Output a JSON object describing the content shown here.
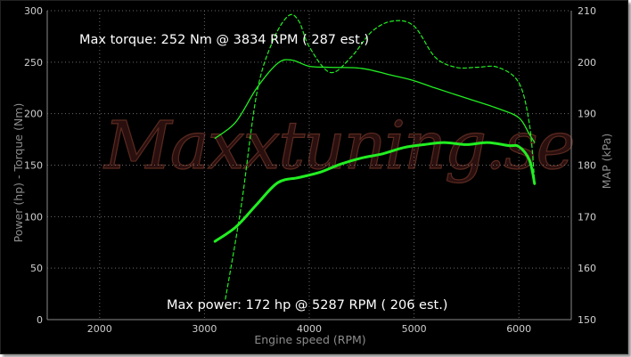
{
  "chart_data": {
    "type": "line",
    "xlabel": "Engine speed (RPM)",
    "ylabel_left": "Power (hp)  - Torque (Nm)",
    "ylabel_right": "MAP (kPa)",
    "xlim": [
      1500,
      6500
    ],
    "ylim_left": [
      0,
      300
    ],
    "ylim_right": [
      150,
      210
    ],
    "x_ticks": [
      2000,
      3000,
      4000,
      5000,
      6000
    ],
    "y_ticks_left": [
      0,
      50,
      100,
      150,
      200,
      250,
      300
    ],
    "y_ticks_right": [
      150,
      160,
      170,
      180,
      190,
      200,
      210
    ],
    "grid": true,
    "watermark": "Maxxtuning.se",
    "annotations": {
      "max_torque": "Max torque:  252 Nm @  3834 RPM ( 287 est.)",
      "max_power": "Max power:   172 hp @  5287 RPM ( 206 est.)"
    },
    "colors": {
      "power": "#22ee22",
      "torque": "#22ee22",
      "map": "#22ee22",
      "background": "#000000"
    },
    "series": [
      {
        "name": "Torque",
        "axis": "left",
        "style": "thin",
        "x": [
          3100,
          3300,
          3500,
          3700,
          3834,
          4000,
          4200,
          4500,
          4800,
          5000,
          5200,
          5500,
          5800,
          6000,
          6100,
          6150
        ],
        "values": [
          176,
          192,
          225,
          249,
          252,
          246,
          245,
          244,
          237,
          232,
          225,
          215,
          205,
          196,
          180,
          172
        ]
      },
      {
        "name": "Power",
        "axis": "left",
        "style": "thick",
        "x": [
          3100,
          3300,
          3500,
          3700,
          3900,
          4100,
          4300,
          4500,
          4700,
          4900,
          5100,
          5287,
          5500,
          5700,
          5900,
          6000,
          6100,
          6150
        ],
        "values": [
          76,
          90,
          112,
          133,
          138,
          143,
          151,
          157,
          161,
          167,
          170,
          172,
          170,
          172,
          169,
          168,
          155,
          132
        ]
      },
      {
        "name": "MAP",
        "axis": "right",
        "style": "dashed",
        "x": [
          3200,
          3350,
          3500,
          3650,
          3800,
          3900,
          4000,
          4200,
          4400,
          4600,
          4800,
          5000,
          5200,
          5400,
          5600,
          5800,
          6000,
          6100,
          6150
        ],
        "values": [
          154,
          172,
          194,
          204,
          209,
          208,
          203,
          198,
          201,
          206,
          208,
          207,
          201,
          199,
          199,
          199,
          196,
          188,
          177
        ]
      }
    ]
  }
}
